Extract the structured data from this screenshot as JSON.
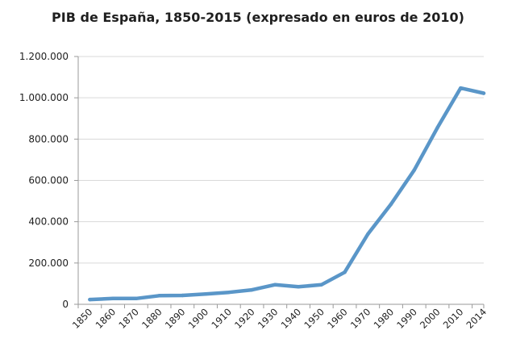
{
  "chart_data": {
    "type": "line",
    "title": "PIB de España, 1850-2015 (expresado en euros de 2010)",
    "xlabel": "",
    "ylabel": "",
    "x": [
      "1850",
      "1860",
      "1870",
      "1880",
      "1890",
      "1900",
      "1910",
      "1920",
      "1930",
      "1940",
      "1950",
      "1960",
      "1970",
      "1980",
      "1990",
      "2000",
      "2010",
      "2014"
    ],
    "series": [
      {
        "values": [
          23000,
          28000,
          28000,
          42000,
          43000,
          50000,
          58000,
          70000,
          95000,
          85000,
          95000,
          155000,
          340000,
          485000,
          650000,
          855000,
          1047000,
          1022000
        ]
      }
    ],
    "ylim": [
      0,
      1200000
    ],
    "yticks": [
      0,
      200000,
      400000,
      600000,
      800000,
      1000000,
      1200000
    ],
    "ytick_labels": [
      "0",
      "200.000",
      "400.000",
      "600.000",
      "800.000",
      "1.000.000",
      "1.200.000"
    ],
    "grid": true,
    "legend": "none",
    "line_color": "#5a96c8"
  }
}
